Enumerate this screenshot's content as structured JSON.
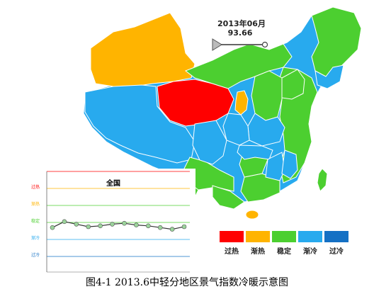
{
  "slider": {
    "date_label": "2013年06月",
    "value_label": "93.66"
  },
  "legend": [
    {
      "label": "过热",
      "color": "#ff0000"
    },
    {
      "label": "渐热",
      "color": "#ffb400"
    },
    {
      "label": "稳定",
      "color": "#4ccf30"
    },
    {
      "label": "渐冷",
      "color": "#28aaee"
    },
    {
      "label": "过冷",
      "color": "#1470c4"
    }
  ],
  "inset_chart": {
    "title": "全国",
    "zone_labels": [
      "过热",
      "渐热",
      "稳定",
      "渐冷",
      "过冷"
    ],
    "zone_colors": [
      "#ff0000",
      "#ffb400",
      "#4ccf30",
      "#28aaee",
      "#1470c4"
    ],
    "series": [
      93.4,
      94.1,
      93.8,
      93.5,
      93.6,
      93.8,
      93.9,
      93.7,
      93.6,
      93.4,
      93.2,
      93.5
    ]
  },
  "caption": "图4-1  2013.6中轻分地区景气指数冷暖示意图"
}
